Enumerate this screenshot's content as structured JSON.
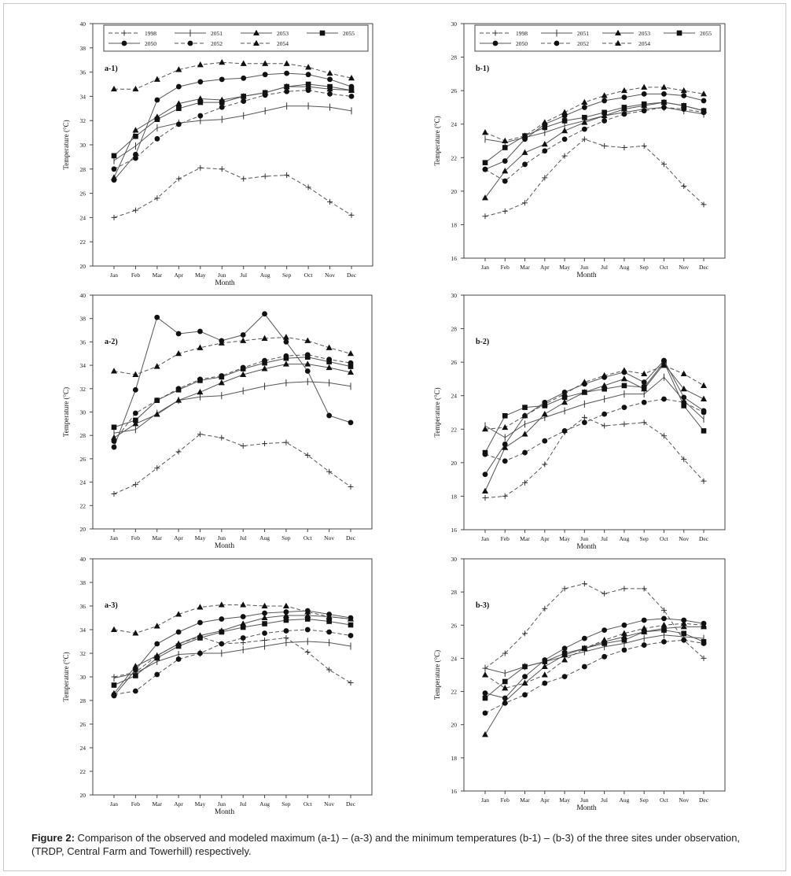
{
  "caption": {
    "label": "Figure 2:",
    "text": "Comparison of the observed and modeled maximum (a-1) – (a-3) and the minimum temperatures (b-1) – (b-3) of the three sites under observation, (TRDP, Central Farm and Towerhill) respectively."
  },
  "chart_data": [
    {
      "type": "line",
      "panel": "a-1)",
      "xlabel": "Month",
      "ylabel": "Temperature (°C)",
      "categories": [
        "Jan",
        "Feb",
        "Mar",
        "Apr",
        "May",
        "Jun",
        "Jul",
        "Aug",
        "Sep",
        "Oct",
        "Nov",
        "Dec"
      ],
      "ylim": [
        20,
        40
      ],
      "yticks": [
        20,
        22,
        24,
        26,
        28,
        30,
        32,
        34,
        36,
        38,
        40
      ],
      "legend": "top",
      "series": [
        {
          "name": "1998",
          "values": [
            24.0,
            24.6,
            25.6,
            27.2,
            28.1,
            28.0,
            27.2,
            27.4,
            27.5,
            26.5,
            25.3,
            24.2
          ]
        },
        {
          "name": "2051",
          "values": [
            28.7,
            29.9,
            31.4,
            31.8,
            32.0,
            32.1,
            32.4,
            32.8,
            33.2,
            33.2,
            33.1,
            32.8
          ]
        },
        {
          "name": "2053",
          "values": [
            27.3,
            31.2,
            32.3,
            33.4,
            33.8,
            33.7,
            34.0,
            34.3,
            34.8,
            34.8,
            34.6,
            34.5
          ]
        },
        {
          "name": "2055",
          "values": [
            29.1,
            30.7,
            32.1,
            33.0,
            33.5,
            33.5,
            34.0,
            34.3,
            34.8,
            35.0,
            34.8,
            34.5
          ]
        },
        {
          "name": "2050",
          "values": [
            27.1,
            29.2,
            33.7,
            34.8,
            35.2,
            35.4,
            35.5,
            35.8,
            35.9,
            35.8,
            35.4,
            34.8
          ]
        },
        {
          "name": "2052",
          "values": [
            28.0,
            28.9,
            30.5,
            31.7,
            32.4,
            33.1,
            33.6,
            34.1,
            34.4,
            34.5,
            34.2,
            34.0
          ]
        },
        {
          "name": "2054",
          "values": [
            34.6,
            34.6,
            35.4,
            36.2,
            36.6,
            36.8,
            36.7,
            36.7,
            36.7,
            36.4,
            35.9,
            35.5
          ]
        }
      ]
    },
    {
      "type": "line",
      "panel": "b-1)",
      "xlabel": "Month",
      "ylabel": "Temperature (°C)",
      "categories": [
        "Jan",
        "Feb",
        "Mar",
        "Apr",
        "May",
        "Jun",
        "Jul",
        "Aug",
        "Sep",
        "Oct",
        "Nov",
        "Dec"
      ],
      "ylim": [
        16,
        30
      ],
      "yticks": [
        16,
        18,
        20,
        22,
        24,
        26,
        28,
        30
      ],
      "legend": "top",
      "series": [
        {
          "name": "1998",
          "values": [
            18.5,
            18.8,
            19.3,
            20.8,
            22.1,
            23.1,
            22.7,
            22.6,
            22.7,
            21.6,
            20.3,
            19.2
          ]
        },
        {
          "name": "2051",
          "values": [
            23.1,
            22.9,
            23.2,
            23.5,
            23.9,
            24.2,
            24.5,
            24.7,
            24.9,
            25.0,
            24.8,
            24.6
          ]
        },
        {
          "name": "2053",
          "values": [
            19.6,
            21.2,
            22.3,
            22.8,
            23.6,
            24.1,
            24.5,
            24.9,
            25.1,
            25.3,
            25.1,
            24.8
          ]
        },
        {
          "name": "2055",
          "values": [
            21.7,
            22.6,
            23.3,
            23.8,
            24.2,
            24.4,
            24.7,
            25.0,
            25.2,
            25.3,
            25.1,
            24.8
          ]
        },
        {
          "name": "2050",
          "values": [
            21.3,
            21.8,
            23.1,
            24.0,
            24.5,
            25.0,
            25.4,
            25.6,
            25.8,
            25.8,
            25.7,
            25.4
          ]
        },
        {
          "name": "2052",
          "values": [
            21.3,
            20.6,
            21.6,
            22.4,
            23.1,
            23.7,
            24.2,
            24.6,
            24.8,
            25.0,
            24.9,
            24.7
          ]
        },
        {
          "name": "2054",
          "values": [
            23.5,
            23.0,
            23.3,
            24.1,
            24.7,
            25.3,
            25.7,
            26.0,
            26.2,
            26.2,
            26.0,
            25.8
          ]
        }
      ]
    },
    {
      "type": "line",
      "panel": "a-2)",
      "xlabel": "Month",
      "ylabel": "Temperature (°C)",
      "categories": [
        "Jan",
        "Feb",
        "Mar",
        "Apr",
        "May",
        "Jun",
        "Jul",
        "Aug",
        "Sep",
        "Oct",
        "Nov",
        "Dec"
      ],
      "ylim": [
        20,
        40
      ],
      "yticks": [
        20,
        22,
        24,
        26,
        28,
        30,
        32,
        34,
        36,
        38,
        40
      ],
      "legend": "none",
      "series": [
        {
          "name": "1998",
          "values": [
            23.0,
            23.8,
            25.2,
            26.6,
            28.1,
            27.8,
            27.1,
            27.3,
            27.4,
            26.3,
            24.9,
            23.6
          ]
        },
        {
          "name": "2051",
          "values": [
            28.2,
            28.5,
            29.9,
            31.0,
            31.3,
            31.4,
            31.8,
            32.2,
            32.5,
            32.6,
            32.5,
            32.2
          ]
        },
        {
          "name": "2053",
          "values": [
            27.8,
            29.0,
            29.8,
            31.0,
            31.7,
            32.5,
            33.2,
            33.7,
            34.1,
            34.1,
            33.8,
            33.4
          ]
        },
        {
          "name": "2055",
          "values": [
            28.7,
            29.3,
            31.0,
            31.9,
            32.7,
            33.0,
            33.7,
            34.2,
            34.6,
            34.7,
            34.3,
            33.9
          ]
        },
        {
          "name": "2050",
          "values": [
            27.0,
            31.9,
            38.1,
            36.7,
            36.9,
            36.1,
            36.6,
            38.4,
            36.0,
            33.5,
            29.7,
            29.1
          ]
        },
        {
          "name": "2052",
          "values": [
            27.5,
            29.9,
            31.0,
            32.0,
            32.8,
            33.1,
            33.8,
            34.4,
            34.8,
            34.9,
            34.5,
            34.2
          ]
        },
        {
          "name": "2054",
          "values": [
            33.5,
            33.2,
            33.9,
            35.0,
            35.5,
            35.9,
            36.1,
            36.3,
            36.4,
            36.1,
            35.5,
            35.0
          ]
        }
      ]
    },
    {
      "type": "line",
      "panel": "b-2)",
      "xlabel": "Month",
      "ylabel": "Temperature (°C)",
      "categories": [
        "Jan",
        "Feb",
        "Mar",
        "Apr",
        "May",
        "Jun",
        "Jul",
        "Aug",
        "Sep",
        "Oct",
        "Nov",
        "Dec"
      ],
      "ylim": [
        16,
        30
      ],
      "yticks": [
        16,
        18,
        20,
        22,
        24,
        26,
        28,
        30
      ],
      "legend": "none",
      "series": [
        {
          "name": "1998",
          "values": [
            17.9,
            18.0,
            18.8,
            19.9,
            21.8,
            22.7,
            22.2,
            22.3,
            22.4,
            21.6,
            20.2,
            18.9
          ]
        },
        {
          "name": "2051",
          "values": [
            22.2,
            21.5,
            22.3,
            22.7,
            23.1,
            23.5,
            23.8,
            24.1,
            24.1,
            25.1,
            23.7,
            22.6
          ]
        },
        {
          "name": "2053",
          "values": [
            18.3,
            20.9,
            21.7,
            22.9,
            23.6,
            24.2,
            24.6,
            25.0,
            24.4,
            25.9,
            24.4,
            23.8
          ]
        },
        {
          "name": "2055",
          "values": [
            20.6,
            22.8,
            23.3,
            23.4,
            23.9,
            24.2,
            24.4,
            24.6,
            24.5,
            26.0,
            23.4,
            21.9
          ]
        },
        {
          "name": "2050",
          "values": [
            19.3,
            21.1,
            22.8,
            23.6,
            24.2,
            24.7,
            25.1,
            25.4,
            24.8,
            26.1,
            23.9,
            23.1
          ]
        },
        {
          "name": "2052",
          "values": [
            20.5,
            20.1,
            20.6,
            21.3,
            21.9,
            22.4,
            22.9,
            23.3,
            23.6,
            23.8,
            23.6,
            23.0
          ]
        },
        {
          "name": "2054",
          "values": [
            22.0,
            22.1,
            22.8,
            23.5,
            24.1,
            24.8,
            25.2,
            25.5,
            25.3,
            25.8,
            25.3,
            24.6
          ]
        }
      ]
    },
    {
      "type": "line",
      "panel": "a-3)",
      "xlabel": "Month",
      "ylabel": "Temperature (°C)",
      "categories": [
        "Jan",
        "Feb",
        "Mar",
        "Apr",
        "May",
        "Jun",
        "Jul",
        "Aug",
        "Sep",
        "Oct",
        "Nov",
        "Dec"
      ],
      "ylim": [
        20,
        40
      ],
      "yticks": [
        20,
        22,
        24,
        26,
        28,
        30,
        32,
        34,
        36,
        38,
        40
      ],
      "legend": "none",
      "series": [
        {
          "name": "1998",
          "values": [
            30.0,
            30.4,
            31.8,
            32.8,
            33.4,
            32.8,
            32.9,
            33.1,
            33.3,
            32.1,
            30.6,
            29.5
          ]
        },
        {
          "name": "2051",
          "values": [
            29.9,
            30.3,
            31.3,
            31.9,
            32.0,
            32.0,
            32.3,
            32.6,
            32.9,
            33.0,
            32.9,
            32.6
          ]
        },
        {
          "name": "2053",
          "values": [
            28.6,
            30.9,
            31.8,
            32.8,
            33.5,
            33.9,
            34.5,
            35.0,
            35.2,
            35.2,
            35.1,
            34.9
          ]
        },
        {
          "name": "2055",
          "values": [
            29.3,
            30.1,
            31.6,
            32.6,
            33.3,
            33.8,
            34.2,
            34.5,
            34.8,
            34.9,
            34.7,
            34.4
          ]
        },
        {
          "name": "2050",
          "values": [
            28.4,
            30.6,
            32.8,
            33.8,
            34.6,
            34.9,
            35.1,
            35.4,
            35.5,
            35.6,
            35.3,
            35.0
          ]
        },
        {
          "name": "2052",
          "values": [
            28.5,
            28.8,
            30.2,
            31.5,
            32.0,
            32.8,
            33.3,
            33.7,
            33.9,
            34.0,
            33.8,
            33.5
          ]
        },
        {
          "name": "2054",
          "values": [
            34.0,
            33.7,
            34.3,
            35.3,
            35.9,
            36.1,
            36.1,
            36.0,
            36.0,
            35.5,
            35.1,
            34.9
          ]
        }
      ]
    },
    {
      "type": "line",
      "panel": "b-3)",
      "xlabel": "Month",
      "ylabel": "Temperature (°C)",
      "categories": [
        "Jan",
        "Feb",
        "Mar",
        "Apr",
        "May",
        "Jun",
        "Jul",
        "Aug",
        "Sep",
        "Oct",
        "Nov",
        "Dec"
      ],
      "ylim": [
        16,
        30
      ],
      "yticks": [
        16,
        18,
        20,
        22,
        24,
        26,
        28,
        30
      ],
      "legend": "none",
      "series": [
        {
          "name": "1998",
          "values": [
            23.4,
            24.3,
            25.5,
            27.0,
            28.2,
            28.5,
            27.9,
            28.2,
            28.2,
            26.9,
            25.1,
            24.0
          ]
        },
        {
          "name": "2051",
          "values": [
            23.4,
            23.1,
            23.5,
            23.8,
            24.1,
            24.4,
            24.7,
            24.9,
            25.2,
            25.4,
            25.3,
            25.2
          ]
        },
        {
          "name": "2053",
          "values": [
            19.4,
            21.4,
            22.5,
            23.5,
            24.2,
            24.6,
            25.0,
            25.3,
            25.6,
            25.8,
            25.9,
            25.9
          ]
        },
        {
          "name": "2055",
          "values": [
            21.6,
            22.6,
            23.5,
            23.8,
            24.3,
            24.6,
            24.9,
            25.1,
            25.6,
            25.7,
            25.5,
            25.0
          ]
        },
        {
          "name": "2050",
          "values": [
            21.9,
            21.6,
            22.9,
            23.9,
            24.6,
            25.2,
            25.7,
            26.0,
            26.3,
            26.4,
            26.3,
            26.1
          ]
        },
        {
          "name": "2052",
          "values": [
            20.7,
            21.3,
            21.8,
            22.5,
            22.9,
            23.5,
            24.1,
            24.5,
            24.8,
            25.0,
            25.1,
            24.9
          ]
        },
        {
          "name": "2054",
          "values": [
            23.0,
            22.2,
            22.5,
            23.0,
            23.9,
            24.6,
            25.1,
            25.5,
            25.8,
            26.0,
            26.1,
            26.0
          ]
        }
      ]
    }
  ]
}
